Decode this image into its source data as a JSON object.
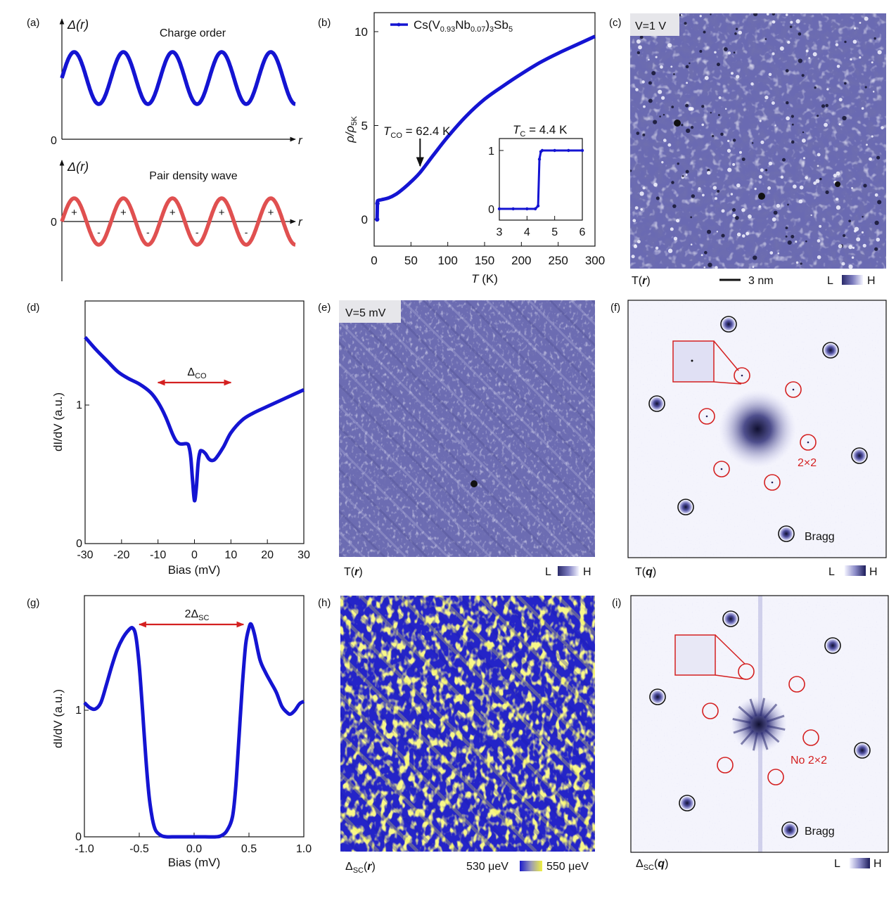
{
  "panel_labels": [
    "(a)",
    "(b)",
    "(c)",
    "(d)",
    "(e)",
    "(f)",
    "(g)",
    "(h)",
    "(i)"
  ],
  "colors": {
    "blue_curve": "#1414d2",
    "red_curve": "#e05050",
    "red_annot": "#d42020",
    "stm_low": "#2a2a6a",
    "stm_mid": "#6c6cb0",
    "stm_high": "#f0f0ff",
    "gap_low": "#1a1acc",
    "gap_high": "#f0f040"
  },
  "panel_a": {
    "top": {
      "title": "Charge order",
      "ylabel": "Δ(r)",
      "zero": "0",
      "xlabel": "r"
    },
    "bottom": {
      "title": "Pair density wave",
      "ylabel": "Δ(r)",
      "zero": "0",
      "xlabel": "r",
      "plus_sign": "+",
      "minus_sign": "-"
    }
  },
  "panel_c": {
    "bias": "V=1 V",
    "map_label": "T(r)",
    "scale_bar": "3 nm",
    "cb_low": "L",
    "cb_high": "H"
  },
  "panel_e": {
    "bias": "V=5 mV",
    "map_label": "T(r)",
    "cb_low": "L",
    "cb_high": "H"
  },
  "panel_f": {
    "map_label": "T(q)",
    "annot_2x2": "2×2",
    "annot_bragg": "Bragg",
    "cb_low": "L",
    "cb_high": "H"
  },
  "panel_h": {
    "map_label": "ΔSC(r)",
    "cb_low": "530 μeV",
    "cb_high": "550 μeV"
  },
  "panel_i": {
    "map_label": "ΔSC(q)",
    "annot_2x2": "No 2×2",
    "annot_bragg": "Bragg",
    "cb_low": "L",
    "cb_high": "H"
  },
  "chart_data": [
    {
      "id": "b",
      "type": "line",
      "title": "",
      "legend": "Cs(V0.93Nb0.07)3Sb5",
      "legend_parts": {
        "base1": "Cs(V",
        "sub1": "0.93",
        "base2": "Nb",
        "sub2": "0.07",
        "base3": ")",
        "sub3": "3",
        "base4": "Sb",
        "sub4": "5"
      },
      "legend_position": "top-left",
      "xlabel": "T (K)",
      "ylabel": "ρ/ρ5K",
      "xlim": [
        0,
        300
      ],
      "ylim": [
        -1.3,
        11
      ],
      "xticks": [
        0,
        50,
        100,
        150,
        200,
        250,
        300
      ],
      "yticks": [
        0,
        5,
        10
      ],
      "x": [
        4,
        4.4,
        5,
        10,
        20,
        30,
        40,
        50,
        62.4,
        80,
        100,
        125,
        150,
        175,
        200,
        225,
        250,
        275,
        300
      ],
      "y": [
        0,
        0.85,
        1.0,
        1.05,
        1.15,
        1.35,
        1.65,
        2.0,
        2.5,
        3.4,
        4.4,
        5.5,
        6.4,
        7.1,
        7.75,
        8.35,
        8.85,
        9.3,
        9.75
      ],
      "annotations": [
        {
          "text": "TCO = 62.4 K",
          "sym": "T",
          "sub": "CO",
          "rest": " = 62.4 K",
          "x": 62.4
        }
      ],
      "inset": {
        "type": "line",
        "title": "TC = 4.4 K",
        "title_parts": {
          "sym": "T",
          "sub": "C",
          "rest": " = 4.4 K"
        },
        "xlim": [
          3,
          6
        ],
        "ylim": [
          -0.2,
          1.2
        ],
        "xticks": [
          3,
          4,
          5,
          6
        ],
        "yticks": [
          0,
          1
        ],
        "x": [
          3,
          3.5,
          4,
          4.3,
          4.4,
          4.45,
          4.5,
          4.55,
          5,
          5.5,
          6
        ],
        "y": [
          0,
          0,
          0,
          0,
          0.05,
          0.85,
          0.98,
          1,
          1,
          1,
          1
        ]
      }
    },
    {
      "id": "d",
      "type": "line",
      "xlabel": "Bias (mV)",
      "ylabel": "dI/dV (a.u.)",
      "xlim": [
        -30,
        30
      ],
      "ylim": [
        0,
        1.5
      ],
      "xticks": [
        -30,
        -20,
        -10,
        0,
        10,
        20,
        30
      ],
      "yticks": [
        0,
        1
      ],
      "annotation": {
        "text": "ΔCO",
        "sym": "Δ",
        "sub": "CO",
        "from": -10,
        "to": 10
      },
      "x": [
        -30,
        -27,
        -24,
        -21,
        -18,
        -15,
        -12,
        -10,
        -8,
        -6,
        -5,
        -4,
        -3,
        -2,
        -1.5,
        -1,
        -0.5,
        0,
        0.5,
        1,
        1.5,
        2,
        3,
        4,
        5,
        6,
        8,
        10,
        13,
        16,
        20,
        25,
        30
      ],
      "y": [
        1.49,
        1.4,
        1.32,
        1.24,
        1.19,
        1.15,
        1.09,
        1.02,
        0.92,
        0.79,
        0.74,
        0.72,
        0.72,
        0.72,
        0.7,
        0.62,
        0.45,
        0.31,
        0.4,
        0.58,
        0.66,
        0.67,
        0.65,
        0.61,
        0.6,
        0.62,
        0.7,
        0.8,
        0.89,
        0.94,
        0.99,
        1.05,
        1.11
      ]
    },
    {
      "id": "g",
      "type": "line",
      "xlabel": "Bias (mV)",
      "ylabel": "dI/dV (a.u.)",
      "xlim": [
        -1.0,
        1.0
      ],
      "ylim": [
        0,
        1.95
      ],
      "xticks": [
        -1.0,
        -0.5,
        0.0,
        0.5,
        1.0
      ],
      "xtick_labels": [
        "-1.0",
        "-0.5",
        "0.0",
        "0.5",
        "1.0"
      ],
      "yticks": [
        0,
        1
      ],
      "annotation": {
        "text": "2ΔSC",
        "pre": "2Δ",
        "sub": "SC",
        "from": -0.5,
        "to": 0.45
      },
      "x": [
        -1.0,
        -0.95,
        -0.9,
        -0.85,
        -0.8,
        -0.75,
        -0.7,
        -0.65,
        -0.6,
        -0.56,
        -0.53,
        -0.5,
        -0.47,
        -0.44,
        -0.41,
        -0.38,
        -0.35,
        -0.3,
        -0.25,
        -0.2,
        -0.1,
        0.0,
        0.1,
        0.2,
        0.25,
        0.3,
        0.35,
        0.38,
        0.41,
        0.44,
        0.47,
        0.5,
        0.52,
        0.55,
        0.6,
        0.65,
        0.7,
        0.75,
        0.8,
        0.85,
        0.88,
        0.92,
        0.96,
        1.0
      ],
      "y": [
        1.06,
        1.02,
        1.01,
        1.06,
        1.2,
        1.35,
        1.48,
        1.57,
        1.63,
        1.65,
        1.58,
        1.35,
        1.0,
        0.62,
        0.32,
        0.14,
        0.05,
        0.01,
        0.0,
        0.0,
        0.0,
        0.0,
        0.0,
        0.0,
        0.01,
        0.05,
        0.16,
        0.4,
        0.8,
        1.2,
        1.52,
        1.65,
        1.68,
        1.6,
        1.4,
        1.3,
        1.22,
        1.14,
        1.03,
        0.98,
        0.97,
        1.0,
        1.05,
        1.07
      ]
    },
    {
      "id": "a_top",
      "type": "line",
      "series_name": "Charge order",
      "periods": 4.75,
      "offset": 0.55,
      "amplitude": 0.25
    },
    {
      "id": "a_bottom",
      "type": "line",
      "series_name": "Pair density wave",
      "periods": 4.75,
      "offset": 0,
      "amplitude": 1
    }
  ]
}
